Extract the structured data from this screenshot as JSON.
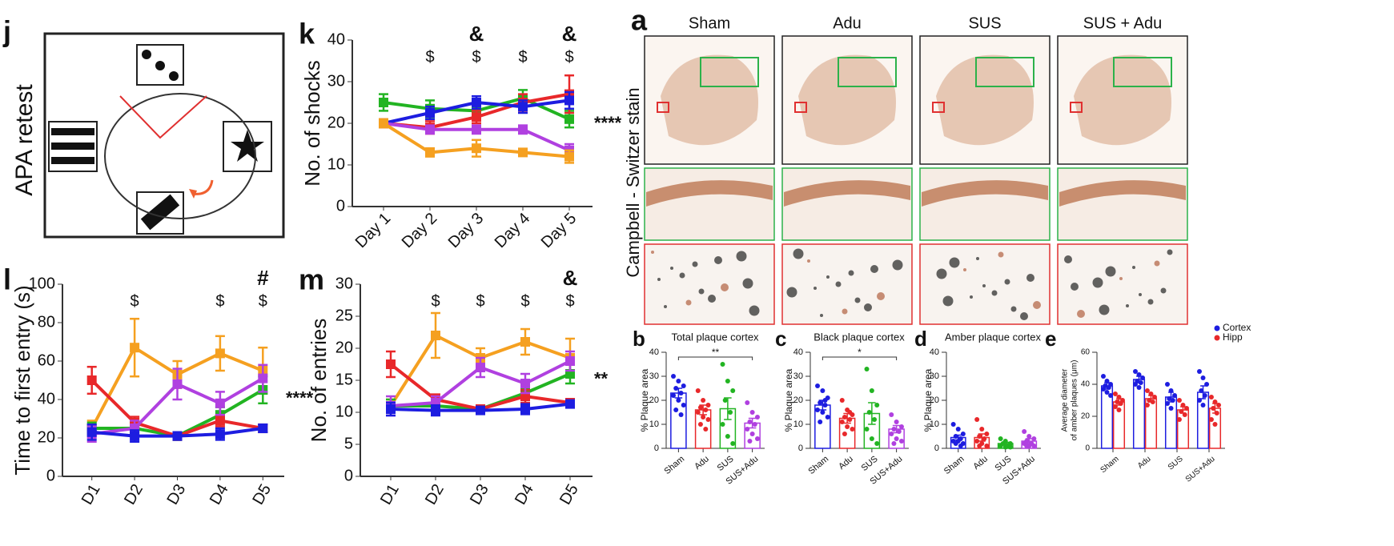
{
  "panels": {
    "j": {
      "letter": "j",
      "label": "APA retest"
    },
    "a": {
      "letter": "a",
      "columns": [
        "Sham",
        "Adu",
        "SUS",
        "SUS + Adu"
      ],
      "row_label": "Campbell - Switzer stain"
    }
  },
  "chart_data": [
    {
      "type": "line",
      "letter": "k",
      "ylabel": "No. of shocks",
      "categories": [
        "Day 1",
        "Day 2",
        "Day 3",
        "Day 4",
        "Day 5"
      ],
      "ylim": [
        0,
        40
      ],
      "yticks": [
        0,
        10,
        20,
        30,
        40
      ],
      "series": [
        {
          "color": "#22b422",
          "values": [
            25,
            23.5,
            23,
            26,
            21
          ],
          "errors": [
            2,
            2,
            2,
            2,
            2
          ]
        },
        {
          "color": "#e8282a",
          "values": [
            20,
            19,
            21.5,
            25,
            27
          ],
          "errors": [
            1,
            1.5,
            1.5,
            2,
            4.5
          ]
        },
        {
          "color": "#1d1de0",
          "values": [
            20,
            22.5,
            25,
            24,
            25.5
          ],
          "errors": [
            1,
            1.5,
            1.5,
            1.5,
            2
          ]
        },
        {
          "color": "#b040e0",
          "values": [
            20,
            18.5,
            18.5,
            18.5,
            13.5
          ],
          "errors": [
            1,
            1,
            1,
            1,
            1.5
          ]
        },
        {
          "color": "#f5a020",
          "values": [
            20,
            13,
            14,
            13,
            12
          ],
          "errors": [
            1,
            1,
            2,
            0.5,
            1.5
          ]
        }
      ],
      "annotations": [
        {
          "text": "$",
          "color": "#b040ff",
          "at": [
            "Day 2",
            "Day 3",
            "Day 4",
            "Day 5"
          ]
        },
        {
          "text": "&",
          "color": "#222222",
          "at": [
            "Day 3",
            "Day 5"
          ]
        }
      ],
      "end_label": "****"
    },
    {
      "type": "line",
      "letter": "l",
      "ylabel": "Time to first entry (s)",
      "categories": [
        "D1",
        "D2",
        "D3",
        "D4",
        "D5"
      ],
      "ylim": [
        0,
        100
      ],
      "yticks": [
        0,
        20,
        40,
        60,
        80,
        100
      ],
      "series": [
        {
          "color": "#f5a020",
          "values": [
            25,
            67,
            53,
            64,
            55
          ],
          "errors": [
            4,
            15,
            7,
            9,
            12
          ]
        },
        {
          "color": "#22b422",
          "values": [
            25,
            25,
            21,
            32,
            45
          ],
          "errors": [
            3,
            3,
            2,
            4,
            7
          ]
        },
        {
          "color": "#e8282a",
          "values": [
            50,
            28,
            21,
            29,
            25
          ],
          "errors": [
            7,
            3,
            2,
            3,
            2
          ]
        },
        {
          "color": "#b040e0",
          "values": [
            22,
            25,
            48,
            38,
            51
          ],
          "errors": [
            4,
            4,
            8,
            6,
            7
          ]
        },
        {
          "color": "#1d1de0",
          "values": [
            23,
            21,
            21,
            22,
            25
          ],
          "errors": [
            4,
            3,
            2,
            3,
            2
          ]
        }
      ],
      "annotations": [
        {
          "text": "$",
          "color": "#b040ff",
          "at": [
            "D2",
            "D4",
            "D5"
          ]
        },
        {
          "text": "#",
          "color": "#222222",
          "at": [
            "D5"
          ]
        }
      ],
      "end_label": "****"
    },
    {
      "type": "line",
      "letter": "m",
      "ylabel": "No. of entries",
      "categories": [
        "D1",
        "D2",
        "D3",
        "D4",
        "D5"
      ],
      "ylim": [
        0,
        30
      ],
      "yticks": [
        0,
        5,
        10,
        15,
        20,
        25,
        30
      ],
      "series": [
        {
          "color": "#f5a020",
          "values": [
            11,
            22,
            18.5,
            21,
            18.5
          ],
          "errors": [
            1,
            3.5,
            1.5,
            2,
            3
          ]
        },
        {
          "color": "#22b422",
          "values": [
            11,
            11,
            10.5,
            13,
            16
          ],
          "errors": [
            1,
            1,
            0.5,
            1,
            1.5
          ]
        },
        {
          "color": "#e8282a",
          "values": [
            17.5,
            12,
            10.5,
            12.5,
            11.5
          ],
          "errors": [
            2,
            0.8,
            0.5,
            1,
            0.5
          ]
        },
        {
          "color": "#b040e0",
          "values": [
            11,
            11.5,
            17,
            14.5,
            18
          ],
          "errors": [
            1.5,
            1,
            1.5,
            1.5,
            1.5
          ]
        },
        {
          "color": "#1d1de0",
          "values": [
            10.5,
            10.3,
            10.3,
            10.5,
            11.3
          ],
          "errors": [
            1,
            0.8,
            0.5,
            0.8,
            0.5
          ]
        }
      ],
      "annotations": [
        {
          "text": "$",
          "color": "#b040ff",
          "at": [
            "D2",
            "D3",
            "D4",
            "D5"
          ]
        },
        {
          "text": "&",
          "color": "#222222",
          "at": [
            "D5"
          ]
        }
      ],
      "end_label": "**"
    },
    {
      "type": "bar",
      "letter": "b",
      "title": "Total plaque cortex",
      "ylabel": "% Plaque area",
      "categories": [
        "Sham",
        "Adu",
        "SUS",
        "SUS+Adu"
      ],
      "colors": [
        "#1d1de0",
        "#e8282a",
        "#22b422",
        "#b040e0"
      ],
      "values": [
        23,
        16,
        16.5,
        10.5
      ],
      "errors": [
        2,
        2,
        4.5,
        2
      ],
      "points": [
        [
          30,
          28,
          26,
          25,
          23,
          22,
          20,
          18,
          16,
          14
        ],
        [
          24,
          20,
          18,
          17,
          16,
          15,
          13,
          12,
          10,
          8
        ],
        [
          35,
          28,
          24,
          20,
          15,
          10,
          5,
          2
        ],
        [
          19,
          15,
          13,
          11,
          10,
          8,
          6,
          4,
          3
        ]
      ],
      "ylim": [
        0,
        40
      ],
      "yticks": [
        0,
        10,
        20,
        30,
        40
      ],
      "significance": {
        "text": "**",
        "from": "Sham",
        "to": "SUS+Adu"
      }
    },
    {
      "type": "bar",
      "letter": "c",
      "title": "Black plaque cortex",
      "ylabel": "% Plaque area",
      "categories": [
        "Sham",
        "Adu",
        "SUS",
        "SUS+Adu"
      ],
      "colors": [
        "#1d1de0",
        "#e8282a",
        "#22b422",
        "#b040e0"
      ],
      "values": [
        18,
        12.5,
        14.5,
        8
      ],
      "errors": [
        2,
        2,
        4.5,
        1.5
      ],
      "points": [
        [
          26,
          24,
          21,
          19,
          18,
          16,
          15,
          13,
          11,
          20
        ],
        [
          20,
          16,
          14,
          13,
          12,
          11,
          9,
          8,
          6,
          15
        ],
        [
          33,
          24,
          18,
          15,
          12,
          8,
          4,
          2
        ],
        [
          14,
          11,
          9,
          8,
          7,
          6,
          4,
          3,
          2
        ]
      ],
      "ylim": [
        0,
        40
      ],
      "yticks": [
        0,
        10,
        20,
        30,
        40
      ],
      "significance": {
        "text": "*",
        "from": "Sham",
        "to": "SUS+Adu"
      }
    },
    {
      "type": "bar",
      "letter": "d",
      "title": "Amber plaque cortex",
      "ylabel": "% Plaque area",
      "categories": [
        "Sham",
        "Adu",
        "SUS",
        "SUS+Adu"
      ],
      "colors": [
        "#1d1de0",
        "#e8282a",
        "#22b422",
        "#b040e0"
      ],
      "values": [
        4.5,
        4.5,
        2,
        3
      ],
      "errors": [
        1,
        1.5,
        0.5,
        1
      ],
      "points": [
        [
          10,
          8,
          6,
          5,
          4,
          3,
          3,
          2,
          2,
          1
        ],
        [
          12,
          8,
          6,
          5,
          4,
          3,
          2,
          1,
          1
        ],
        [
          4,
          3,
          2,
          2,
          1,
          1,
          0.5,
          0.5
        ],
        [
          7,
          5,
          4,
          3,
          2,
          2,
          1,
          1,
          1
        ]
      ],
      "ylim": [
        0,
        40
      ],
      "yticks": [
        0,
        10,
        20,
        30,
        40
      ]
    },
    {
      "type": "bar",
      "letter": "e",
      "ylabel": [
        "Average diameter",
        "of amber plaques (μm)"
      ],
      "categories": [
        "Sham",
        "Adu",
        "SUS",
        "SUS+Adu"
      ],
      "series": [
        {
          "name": "Cortex",
          "color": "#1d1de0",
          "values": [
            39,
            43,
            32,
            35
          ],
          "errors": [
            2,
            2,
            3,
            4
          ],
          "points": [
            [
              45,
              42,
              40,
              39,
              38,
              37,
              35,
              33
            ],
            [
              48,
              46,
              44,
              42,
              41,
              40,
              38
            ],
            [
              40,
              36,
              33,
              31,
              30,
              28,
              25
            ],
            [
              48,
              44,
              40,
              36,
              33,
              30,
              27
            ]
          ]
        },
        {
          "name": "Hipp",
          "color": "#e8282a",
          "values": [
            29,
            31,
            24,
            25
          ],
          "errors": [
            2,
            2,
            2,
            3
          ],
          "points": [
            [
              34,
              32,
              30,
              29,
              28,
              26,
              24
            ],
            [
              36,
              34,
              32,
              30,
              29,
              27
            ],
            [
              30,
              27,
              25,
              23,
              21,
              18
            ],
            [
              32,
              29,
              27,
              25,
              22,
              18,
              15
            ]
          ]
        }
      ],
      "ylim": [
        0,
        60
      ],
      "yticks": [
        0,
        20,
        40,
        60
      ],
      "legend": "upper right"
    }
  ]
}
